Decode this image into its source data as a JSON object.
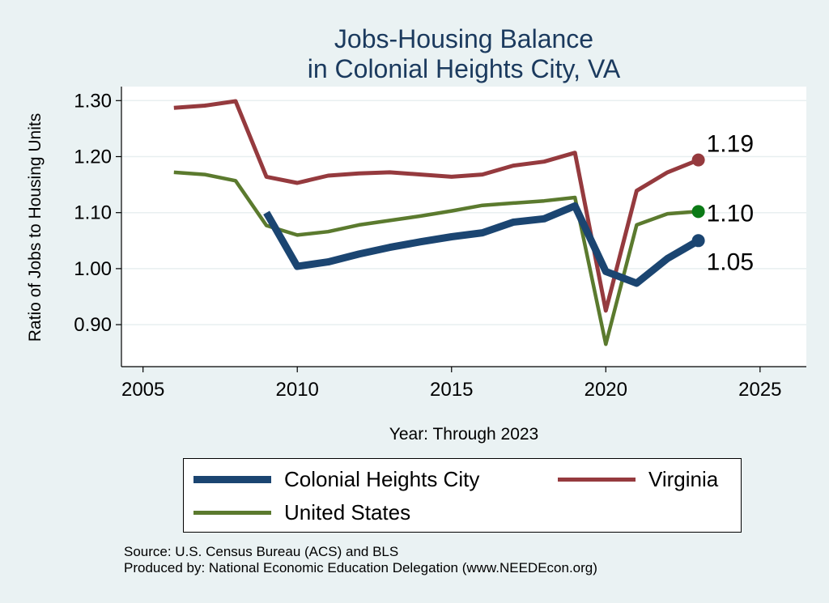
{
  "chart_data": {
    "type": "line",
    "title_lines": [
      "Jobs-Housing Balance",
      "in Colonial Heights City, VA"
    ],
    "xlabel": "Year: Through 2023",
    "ylabel": "Ratio of Jobs to Housing Units",
    "xlim": [
      2004.3,
      2026.5
    ],
    "ylim": [
      0.825,
      1.325
    ],
    "x_ticks": [
      2005,
      2010,
      2015,
      2020,
      2025
    ],
    "y_ticks": [
      0.9,
      1.0,
      1.1,
      1.2,
      1.3
    ],
    "y_tick_labels": [
      "0.90",
      "1.00",
      "1.10",
      "1.20",
      "1.30"
    ],
    "grid": true,
    "legend_position": "bottom",
    "series": [
      {
        "name": "Colonial Heights City",
        "color": "#1b4571",
        "x": [
          2009,
          2010,
          2011,
          2012,
          2013,
          2014,
          2015,
          2016,
          2017,
          2018,
          2019,
          2020,
          2021,
          2022,
          2023
        ],
        "values": [
          1.1,
          1.004,
          1.012,
          1.026,
          1.038,
          1.048,
          1.057,
          1.064,
          1.083,
          1.089,
          1.112,
          0.995,
          0.974,
          1.018,
          1.05
        ],
        "end_label": "1.05"
      },
      {
        "name": "Virginia",
        "color": "#953a3e",
        "x": [
          2006,
          2007,
          2008,
          2009,
          2010,
          2011,
          2012,
          2013,
          2014,
          2015,
          2016,
          2017,
          2018,
          2019,
          2020,
          2021,
          2022,
          2023
        ],
        "values": [
          1.287,
          1.291,
          1.299,
          1.164,
          1.153,
          1.166,
          1.17,
          1.172,
          1.168,
          1.164,
          1.168,
          1.184,
          1.191,
          1.207,
          0.925,
          1.139,
          1.172,
          1.194
        ],
        "end_label": "1.19"
      },
      {
        "name": "United States",
        "color": "#5b7a2e",
        "marker_color": "#0b7a16",
        "x": [
          2006,
          2007,
          2008,
          2009,
          2010,
          2011,
          2012,
          2013,
          2014,
          2015,
          2016,
          2017,
          2018,
          2019,
          2020,
          2021,
          2022,
          2023
        ],
        "values": [
          1.172,
          1.168,
          1.157,
          1.077,
          1.06,
          1.066,
          1.078,
          1.086,
          1.094,
          1.103,
          1.113,
          1.117,
          1.121,
          1.127,
          0.865,
          1.078,
          1.098,
          1.102
        ],
        "end_label": "1.10"
      }
    ]
  },
  "footer": {
    "source": "Source: U.S. Census Bureau (ACS) and BLS",
    "produced": "Produced by: National Economic Education Delegation (www.NEEDEcon.org)"
  }
}
